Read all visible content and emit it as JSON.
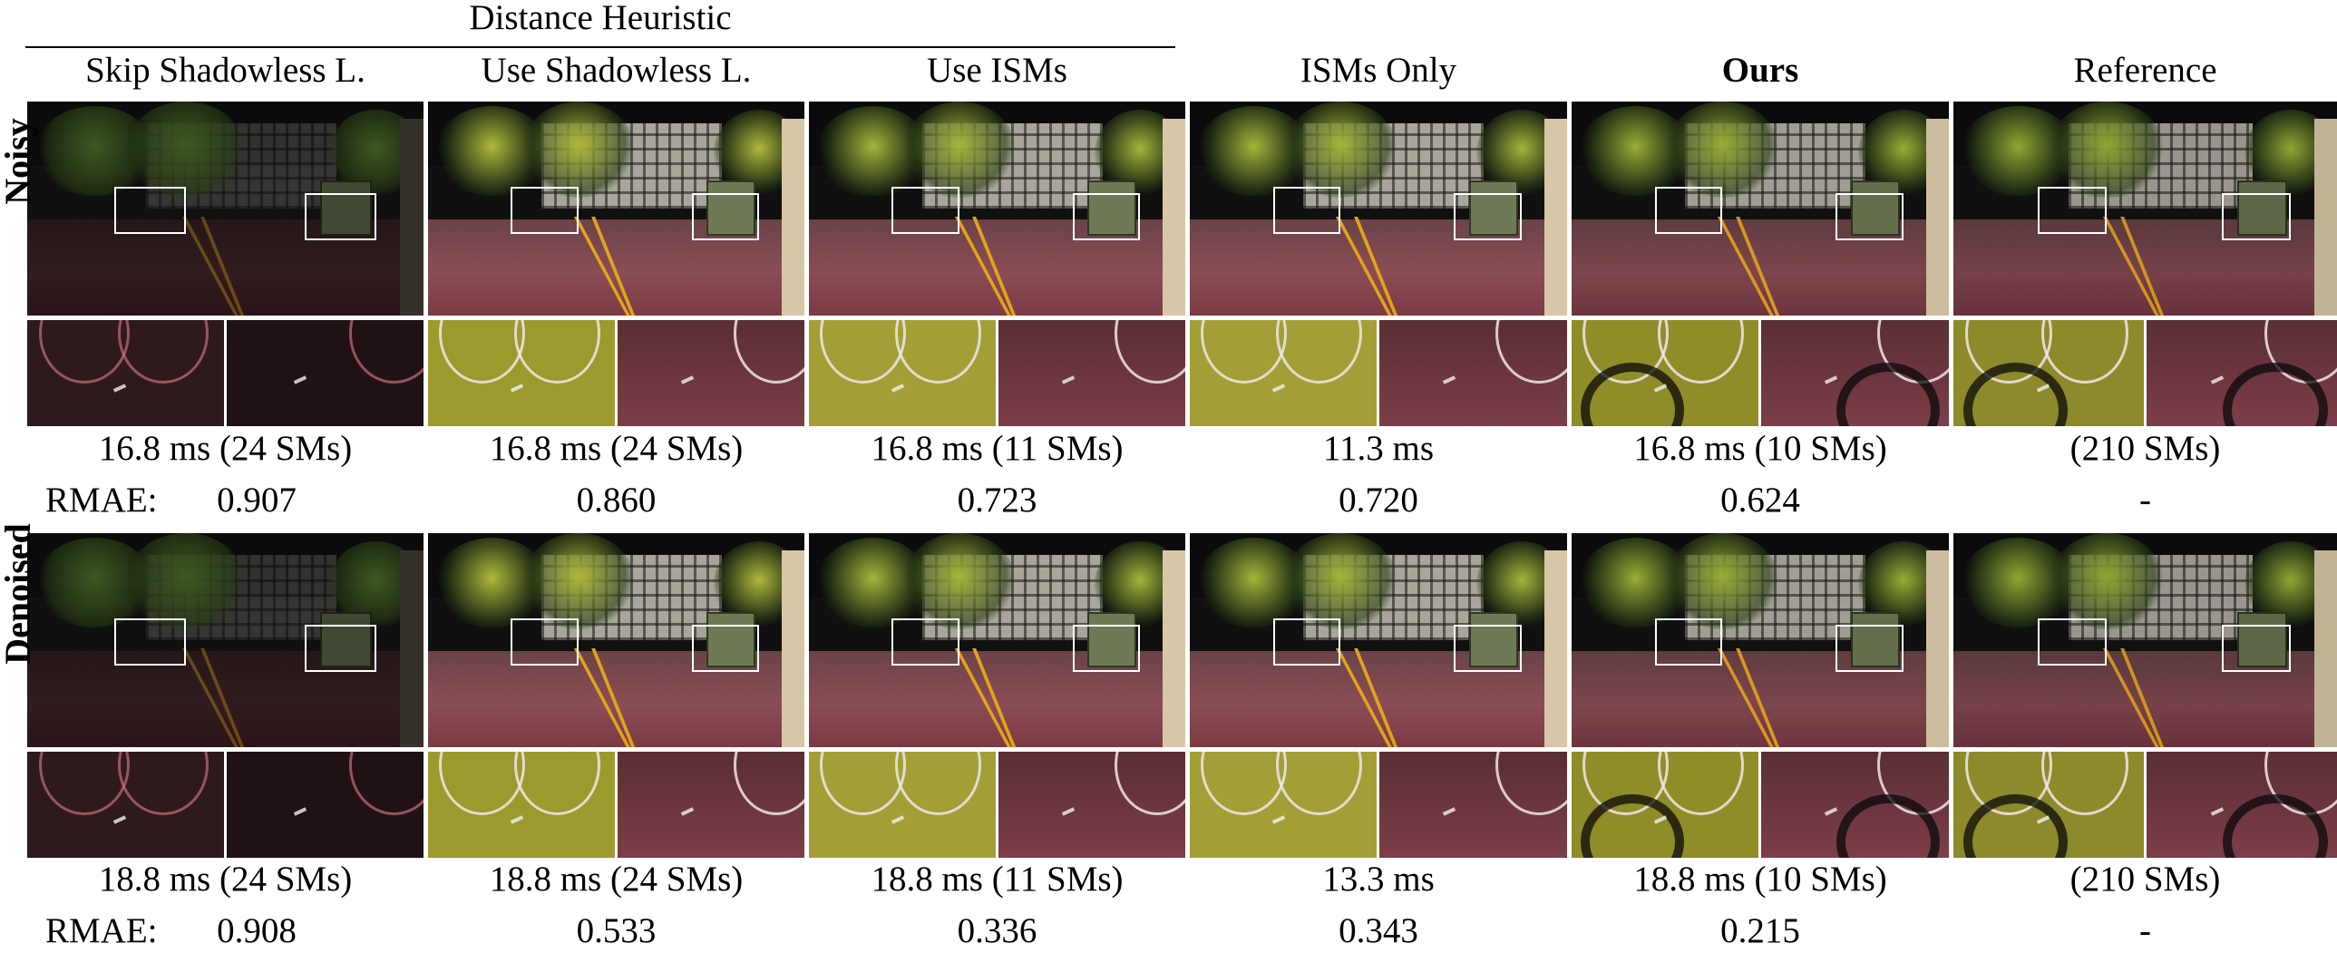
{
  "group_header": "Distance Heuristic",
  "columns": [
    {
      "label": "Skip Shadowless L.",
      "bold": false
    },
    {
      "label": "Use Shadowless L.",
      "bold": false
    },
    {
      "label": "Use ISMs",
      "bold": false
    },
    {
      "label": "ISMs Only",
      "bold": false
    },
    {
      "label": "Ours",
      "bold": true
    },
    {
      "label": "Reference",
      "bold": false
    }
  ],
  "rows": [
    {
      "label": "Noisy",
      "timings": [
        "16.8 ms (24 SMs)",
        "16.8 ms (24 SMs)",
        "16.8 ms (11 SMs)",
        "11.3 ms",
        "16.8 ms (10 SMs)",
        "(210 SMs)"
      ],
      "rmae_label": "RMAE:",
      "rmae": [
        "0.907",
        "0.860",
        "0.723",
        "0.720",
        "0.624",
        "-"
      ]
    },
    {
      "label": "Denoised",
      "timings": [
        "18.8 ms (24 SMs)",
        "18.8 ms (24 SMs)",
        "18.8 ms (11 SMs)",
        "13.3 ms",
        "18.8 ms (10 SMs)",
        "(210 SMs)"
      ],
      "rmae_label": "RMAE:",
      "rmae": [
        "0.908",
        "0.533",
        "0.336",
        "0.343",
        "0.215",
        "-"
      ]
    }
  ]
}
